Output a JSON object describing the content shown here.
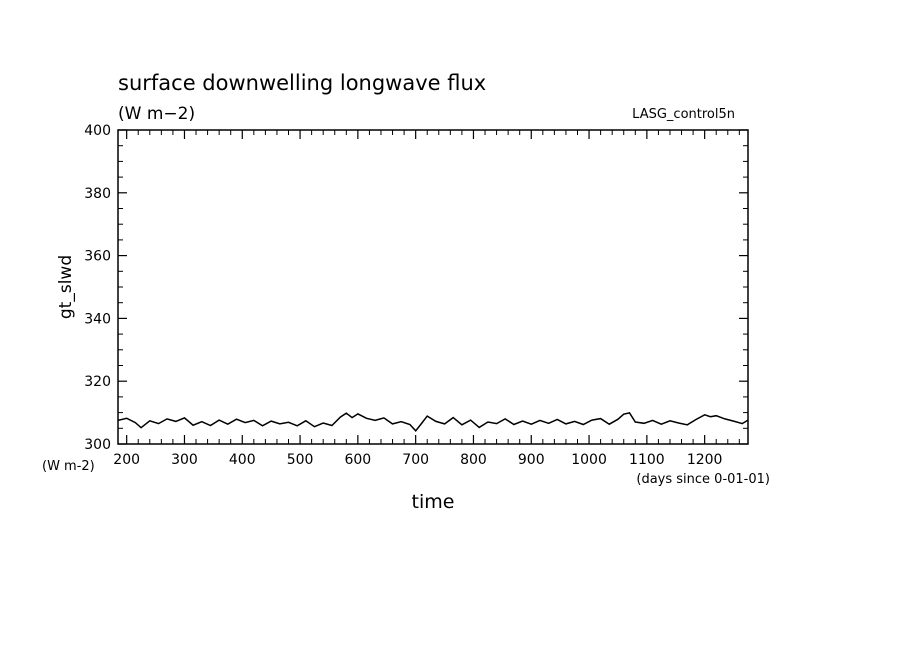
{
  "chart_data": {
    "type": "line",
    "title": "surface downwelling longwave flux",
    "subtitle": "(W m−2)",
    "dataset_label": "LASG_control5n",
    "ylabel": "gt_slwd",
    "yunit_label": "(W m-2)",
    "xlabel": "time",
    "xunit_label": "(days since 0-01-01)",
    "xlim": [
      185,
      1275
    ],
    "ylim": [
      300,
      400
    ],
    "xticks": [
      200,
      300,
      400,
      500,
      600,
      700,
      800,
      900,
      1000,
      1100,
      1200
    ],
    "yticks": [
      300,
      320,
      340,
      360,
      380,
      400
    ],
    "grid": false,
    "series": [
      {
        "x": [
          185,
          200,
          215,
          225,
          240,
          255,
          270,
          285,
          300,
          315,
          330,
          345,
          360,
          375,
          390,
          405,
          420,
          435,
          450,
          465,
          480,
          495,
          510,
          525,
          540,
          555,
          570,
          580,
          590,
          600,
          615,
          630,
          645,
          660,
          675,
          690,
          700,
          710,
          720,
          735,
          750,
          765,
          780,
          795,
          810,
          825,
          840,
          855,
          870,
          885,
          900,
          915,
          930,
          945,
          960,
          975,
          990,
          1005,
          1020,
          1035,
          1050,
          1060,
          1070,
          1080,
          1095,
          1110,
          1125,
          1140,
          1155,
          1170,
          1185,
          1200,
          1210,
          1220,
          1235,
          1250,
          1265,
          1275
        ],
        "y": [
          307.5,
          308.2,
          306.8,
          305.2,
          307.4,
          306.5,
          308.0,
          307.2,
          308.3,
          306.0,
          307.1,
          305.9,
          307.6,
          306.3,
          307.9,
          306.8,
          307.5,
          305.8,
          307.3,
          306.4,
          306.9,
          305.8,
          307.4,
          305.5,
          306.7,
          305.9,
          308.6,
          309.8,
          308.4,
          309.6,
          308.2,
          307.5,
          308.3,
          306.4,
          307.1,
          306.2,
          304.2,
          306.5,
          308.9,
          307.2,
          306.4,
          308.4,
          306.1,
          307.6,
          305.3,
          307.0,
          306.5,
          308.0,
          306.2,
          307.3,
          306.3,
          307.5,
          306.6,
          307.8,
          306.4,
          307.2,
          306.2,
          307.6,
          308.1,
          306.3,
          307.9,
          309.5,
          309.9,
          307.0,
          306.6,
          307.5,
          306.3,
          307.4,
          306.7,
          306.1,
          307.8,
          309.3,
          308.7,
          309.0,
          308.0,
          307.3,
          306.5,
          307.6
        ]
      }
    ]
  }
}
